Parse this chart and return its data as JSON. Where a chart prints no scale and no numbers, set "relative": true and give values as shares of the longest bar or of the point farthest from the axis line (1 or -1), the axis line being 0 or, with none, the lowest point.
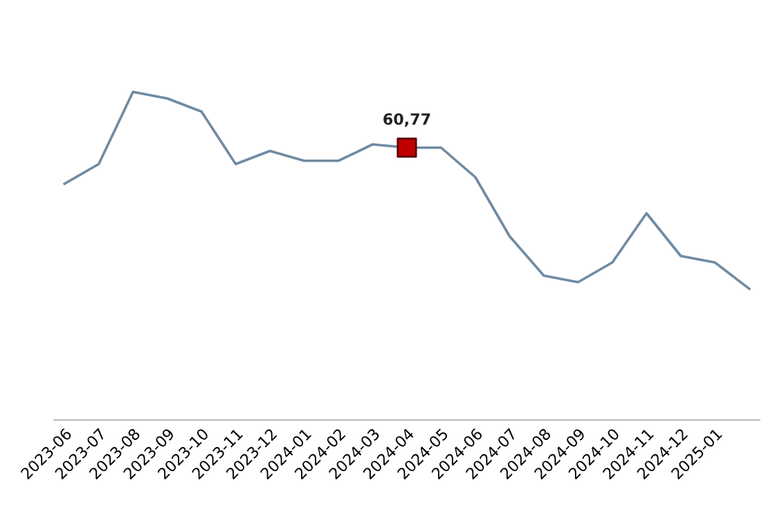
{
  "chart_data": {
    "type": "line",
    "relative": true,
    "categories": [
      "2023-06",
      "2023-07",
      "2023-08",
      "2023-09",
      "2023-10",
      "2023-11",
      "2023-12",
      "2024-01",
      "2024-02",
      "2024-03",
      "2024-04",
      "2024-05",
      "2024-06",
      "2024-07",
      "2024-08",
      "2024-09",
      "2024-10",
      "2024-11",
      "2024-12",
      "2025-01",
      null
    ],
    "series": [
      {
        "color": "#6f8ba3",
        "marker": "none",
        "values": [
          0.72,
          0.78,
          1.0,
          0.98,
          0.94,
          0.78,
          0.82,
          0.79,
          0.79,
          0.84,
          0.83,
          0.83,
          0.74,
          0.56,
          0.44,
          0.42,
          0.48,
          0.63,
          0.5,
          0.48,
          0.4
        ]
      },
      {
        "type": "scatter",
        "color": "#c00000",
        "marker": "square",
        "values": [
          null,
          null,
          null,
          null,
          null,
          null,
          null,
          null,
          null,
          null,
          0.83,
          null,
          null,
          null,
          null,
          null,
          null,
          null,
          null,
          null,
          null
        ]
      }
    ],
    "annotations": [
      "60,77"
    ],
    "tick_labels": "x",
    "grid": false,
    "legend": false
  }
}
